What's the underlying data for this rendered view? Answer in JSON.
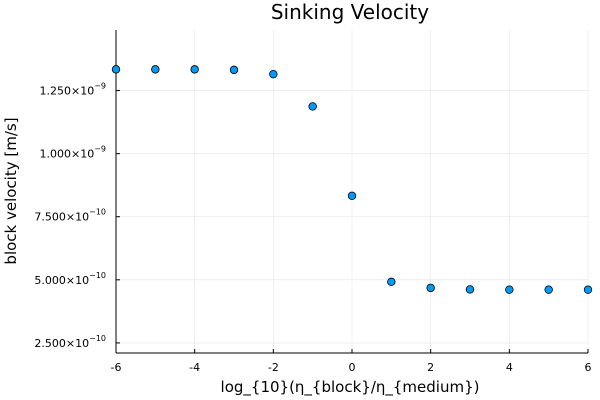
{
  "chart_data": {
    "type": "scatter",
    "title": "Sinking Velocity",
    "xlabel": "log_{10}(η_{block}/η_{medium})",
    "ylabel": "block velocity [m/s]",
    "xlim": [
      -6,
      6
    ],
    "ylim": [
      2.1e-10,
      1.49e-09
    ],
    "x_ticks": [
      -6,
      -4,
      -2,
      0,
      2,
      4,
      6
    ],
    "x_tick_labels": [
      "-6",
      "-4",
      "-2",
      "0",
      "2",
      "4",
      "6"
    ],
    "y_ticks": [
      {
        "value": 2.5e-10,
        "mantissa": "2.500×10",
        "exponent": "−10"
      },
      {
        "value": 5e-10,
        "mantissa": "5.000×10",
        "exponent": "−10"
      },
      {
        "value": 7.5e-10,
        "mantissa": "7.500×10",
        "exponent": "−10"
      },
      {
        "value": 1e-09,
        "mantissa": "1.000×10",
        "exponent": "−9"
      },
      {
        "value": 1.25e-09,
        "mantissa": "1.250×10",
        "exponent": "−9"
      }
    ],
    "grid": true,
    "legend": "none",
    "marker_color": "#009AFA",
    "points": [
      {
        "x": -6,
        "y": 1.334e-09
      },
      {
        "x": -5,
        "y": 1.334e-09
      },
      {
        "x": -4,
        "y": 1.334e-09
      },
      {
        "x": -3,
        "y": 1.332e-09
      },
      {
        "x": -2,
        "y": 1.315e-09
      },
      {
        "x": -1,
        "y": 1.187e-09
      },
      {
        "x": 0,
        "y": 8.33e-10
      },
      {
        "x": 1,
        "y": 4.92e-10
      },
      {
        "x": 2,
        "y": 4.68e-10
      },
      {
        "x": 3,
        "y": 4.62e-10
      },
      {
        "x": 4,
        "y": 4.61e-10
      },
      {
        "x": 5,
        "y": 4.61e-10
      },
      {
        "x": 6,
        "y": 4.61e-10
      }
    ]
  }
}
